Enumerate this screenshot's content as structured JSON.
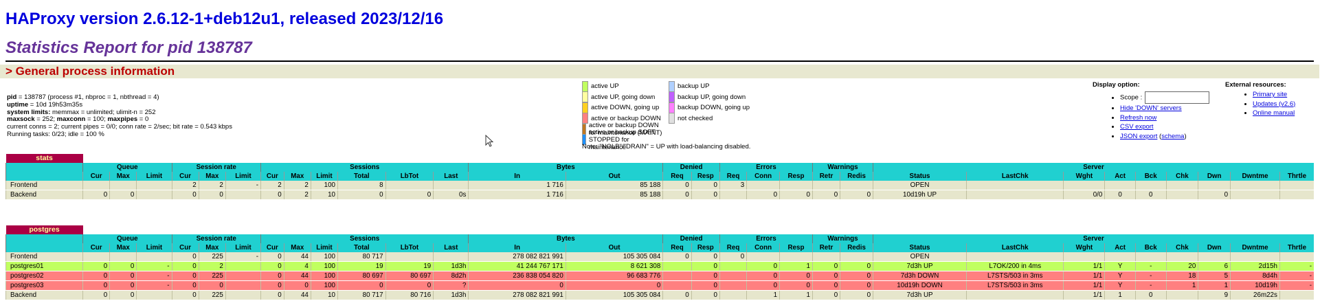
{
  "header": {
    "version_title": "HAProxy version 2.6.12-1+deb12u1, released 2023/12/16",
    "report_title": "Statistics Report for pid 138787",
    "section_title": "> General process information"
  },
  "process_info": {
    "line1_label": "pid",
    "line1_value": " = 138787 (process #1, nbproc = 1, nbthread = 4)",
    "line2_label": "uptime",
    "line2_value": " = 10d 19h53m35s",
    "line3_label": "system limits:",
    "line3_value": " memmax = unlimited; ulimit-n = 252",
    "line4_label": "maxsock",
    "line4_value": " = 252; ",
    "line4b_label": "maxconn",
    "line4b_value": " = 100; ",
    "line4c_label": "maxpipes",
    "line4c_value": " = 0",
    "line5": "current conns = 2; current pipes = 0/0; conn rate = 2/sec; bit rate = 0.543 kbps",
    "line6": "Running tasks: 0/23; idle = 100 %"
  },
  "legend": {
    "items_left": [
      {
        "label": "active UP",
        "color": "#c0ff60"
      },
      {
        "label": "active UP, going down",
        "color": "#ffffa0"
      },
      {
        "label": "active DOWN, going up",
        "color": "#ffd020"
      },
      {
        "label": "active or backup DOWN",
        "color": "#ff8080"
      },
      {
        "label": "active or backup DOWN for maintenance (MAINT)",
        "color": "#c07820"
      },
      {
        "label": "active or backup SOFT STOPPED for maintenance",
        "color": "#1e90ff"
      }
    ],
    "items_right": [
      {
        "label": "backup UP",
        "color": "#b0d0ff"
      },
      {
        "label": "backup UP, going down",
        "color": "#c060ff"
      },
      {
        "label": "backup DOWN, going up",
        "color": "#ff80ff"
      },
      {
        "label": "not checked",
        "color": "#e0e0e0"
      }
    ],
    "note": "Note: \"NOLB\"/\"DRAIN\" = UP with load-balancing disabled."
  },
  "display_options": {
    "title": "Display option:",
    "scope_label": "Scope :",
    "scope_value": "",
    "links": [
      "Hide 'DOWN' servers",
      "Refresh now",
      "CSV export",
      "JSON export"
    ],
    "schema_prefix": " (",
    "schema_link": "schema",
    "schema_suffix": ")"
  },
  "external_resources": {
    "title": "External resources:",
    "links": [
      "Primary site",
      "Updates (v2.6)",
      "Online manual"
    ]
  },
  "table_headers": {
    "groups": [
      "Queue",
      "Session rate",
      "Sessions",
      "Bytes",
      "Denied",
      "Errors",
      "Warnings",
      "Server"
    ],
    "cols": [
      "Cur",
      "Max",
      "Limit",
      "Cur",
      "Max",
      "Limit",
      "Cur",
      "Max",
      "Limit",
      "Total",
      "LbTot",
      "Last",
      "In",
      "Out",
      "Req",
      "Resp",
      "Req",
      "Conn",
      "Resp",
      "Retr",
      "Redis",
      "Status",
      "LastChk",
      "Wght",
      "Act",
      "Bck",
      "Chk",
      "Dwn",
      "Dwntme",
      "Thrtle"
    ]
  },
  "proxies": [
    {
      "name": "stats",
      "rows": [
        {
          "kind": "front",
          "cells": [
            "Frontend",
            "",
            "",
            "",
            "2",
            "2",
            "-",
            "2",
            "2",
            "100",
            "8",
            "",
            "",
            "1 716",
            "85 188",
            "0",
            "0",
            "3",
            "",
            "",
            "",
            "",
            "OPEN",
            "",
            "",
            "",
            "",
            "",
            "",
            "",
            ""
          ]
        },
        {
          "kind": "back",
          "cells": [
            "Backend",
            "0",
            "0",
            "",
            "0",
            "0",
            "",
            "0",
            "2",
            "10",
            "0",
            "0",
            "0s",
            "1 716",
            "85 188",
            "0",
            "0",
            "",
            "0",
            "0",
            "0",
            "0",
            "10d19h UP",
            "",
            "0/0",
            "0",
            "0",
            "",
            "0",
            "",
            ""
          ]
        }
      ]
    },
    {
      "name": "postgres",
      "rows": [
        {
          "kind": "front",
          "cells": [
            "Frontend",
            "",
            "",
            "",
            "0",
            "225",
            "-",
            "0",
            "44",
            "100",
            "80 717",
            "",
            "",
            "278 082 821 991",
            "105 305 084",
            "0",
            "0",
            "0",
            "",
            "",
            "",
            "",
            "OPEN",
            "",
            "",
            "",
            "",
            "",
            "",
            "",
            ""
          ]
        },
        {
          "kind": "up",
          "cells": [
            "postgres01",
            "0",
            "0",
            "-",
            "0",
            "2",
            "",
            "0",
            "4",
            "100",
            "19",
            "19",
            "1d3h",
            "41 244 767 171",
            "8 621 308",
            "",
            "0",
            "",
            "0",
            "1",
            "0",
            "0",
            "7d3h UP",
            "L7OK/200 in 4ms",
            "1/1",
            "Y",
            "-",
            "20",
            "6",
            "2d15h",
            "-"
          ]
        },
        {
          "kind": "down",
          "cells": [
            "postgres02",
            "0",
            "0",
            "-",
            "0",
            "225",
            "",
            "0",
            "44",
            "100",
            "80 697",
            "80 697",
            "8d2h",
            "236 838 054 820",
            "96 683 776",
            "",
            "0",
            "",
            "0",
            "0",
            "0",
            "0",
            "7d3h DOWN",
            "L7STS/503 in 3ms",
            "1/1",
            "Y",
            "-",
            "18",
            "5",
            "8d4h",
            "-"
          ]
        },
        {
          "kind": "down",
          "cells": [
            "postgres03",
            "0",
            "0",
            "-",
            "0",
            "0",
            "",
            "0",
            "0",
            "100",
            "0",
            "0",
            "?",
            "0",
            "0",
            "",
            "0",
            "",
            "0",
            "0",
            "0",
            "0",
            "10d19h DOWN",
            "L7STS/503 in 3ms",
            "1/1",
            "Y",
            "-",
            "1",
            "1",
            "10d19h",
            "-"
          ]
        },
        {
          "kind": "back",
          "cells": [
            "Backend",
            "0",
            "0",
            "",
            "0",
            "225",
            "",
            "0",
            "44",
            "10",
            "80 717",
            "80 716",
            "1d3h",
            "278 082 821 991",
            "105 305 084",
            "0",
            "0",
            "",
            "1",
            "1",
            "0",
            "0",
            "7d3h UP",
            "",
            "1/1",
            "1",
            "0",
            "",
            "9",
            "26m22s",
            ""
          ]
        }
      ]
    }
  ]
}
